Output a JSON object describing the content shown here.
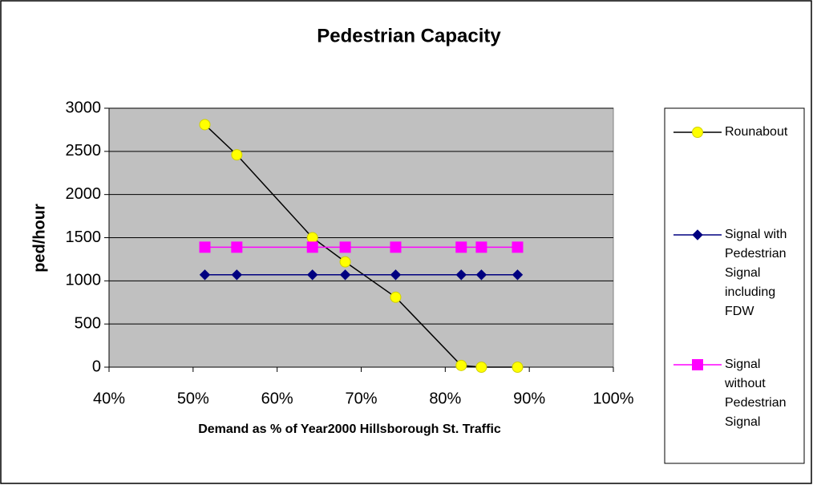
{
  "chart_data": {
    "type": "line",
    "title": "Pedestrian Capacity",
    "x_label": "Demand as % of Year2000 Hillsborough St. Traffic",
    "y_label": "ped/hour",
    "x": [
      51.4,
      55.2,
      64.2,
      68.1,
      74.1,
      81.9,
      84.3,
      88.6
    ],
    "series": [
      {
        "name": "Rounabout",
        "color": "#000000",
        "marker": "circle",
        "marker_color": "#ffff00",
        "values": [
          2810,
          2460,
          1500,
          1220,
          810,
          20,
          0,
          0
        ]
      },
      {
        "name": "Signal with Pedestrian Signal including FDW",
        "color": "#000080",
        "marker": "diamond",
        "marker_color": "#000080",
        "values": [
          1070,
          1070,
          1070,
          1070,
          1070,
          1070,
          1070,
          1070
        ]
      },
      {
        "name": "Signal without Pedestrian Signal",
        "color": "#ff00ff",
        "marker": "square",
        "marker_color": "#ff00ff",
        "values": [
          1390,
          1390,
          1390,
          1390,
          1390,
          1390,
          1390,
          1390
        ]
      }
    ],
    "xlim": [
      40,
      100
    ],
    "xticks": [
      {
        "value": 40,
        "label": "40%"
      },
      {
        "value": 50,
        "label": "50%"
      },
      {
        "value": 60,
        "label": "60%"
      },
      {
        "value": 70,
        "label": "70%"
      },
      {
        "value": 80,
        "label": "80%"
      },
      {
        "value": 90,
        "label": "90%"
      },
      {
        "value": 100,
        "label": "100%"
      }
    ],
    "ylim": [
      0,
      3000
    ],
    "yticks": [
      0,
      500,
      1000,
      1500,
      2000,
      2500,
      3000
    ],
    "grid": true,
    "plot_background": "#c0c0c0",
    "legend": "right"
  }
}
